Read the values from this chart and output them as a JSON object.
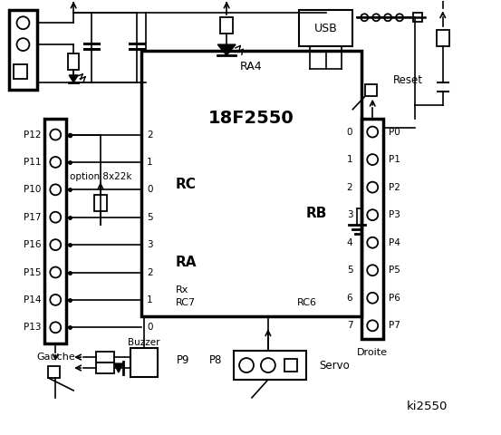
{
  "bg": "#ffffff",
  "lc": "#000000",
  "figsize": [
    5.53,
    4.8
  ],
  "dpi": 100,
  "chip": [
    155,
    55,
    245,
    295
  ],
  "lconn": [
    48,
    130,
    24,
    250
  ],
  "rconn": [
    400,
    130,
    24,
    245
  ],
  "left_pins": [
    "P12",
    "P11",
    "P10",
    "P17",
    "P16",
    "P15",
    "P14",
    "P13"
  ],
  "rc_nums": [
    "2",
    "1",
    "0",
    "5",
    "3",
    "2",
    "1",
    "0"
  ],
  "right_pins": [
    "P0",
    "P1",
    "P2",
    "P3",
    "P4",
    "P5",
    "P6",
    "P7"
  ],
  "rb_nums": [
    "0",
    "1",
    "2",
    "3",
    "4",
    "5",
    "6",
    "7"
  ]
}
